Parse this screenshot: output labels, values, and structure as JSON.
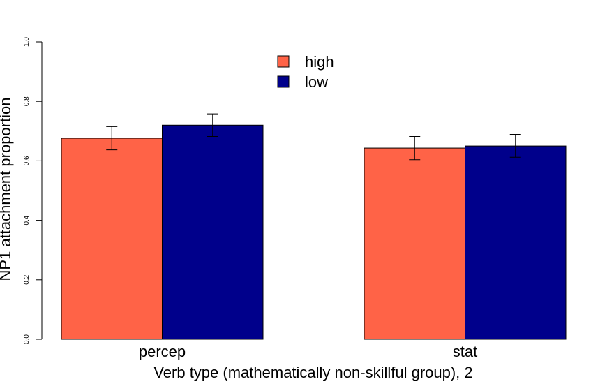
{
  "chart_data": {
    "type": "bar",
    "title": "",
    "xlabel": "Verb type (mathematically non-skillful group), 2",
    "ylabel": "NP1 attachment proportion",
    "ylim": [
      0,
      1
    ],
    "yticks": [
      "0.0",
      "0.2",
      "0.4",
      "0.6",
      "0.8",
      "1.0"
    ],
    "categories": [
      "percep",
      "stat"
    ],
    "series": [
      {
        "name": "high",
        "color": "#FF6347",
        "values": [
          0.676,
          0.643
        ],
        "err_low": [
          0.637,
          0.604
        ],
        "err_high": [
          0.715,
          0.682
        ]
      },
      {
        "name": "low",
        "color": "#00008B",
        "values": [
          0.72,
          0.65
        ],
        "err_low": [
          0.682,
          0.612
        ],
        "err_high": [
          0.758,
          0.689
        ]
      }
    ],
    "legend_position": "top-center",
    "grid": false
  }
}
